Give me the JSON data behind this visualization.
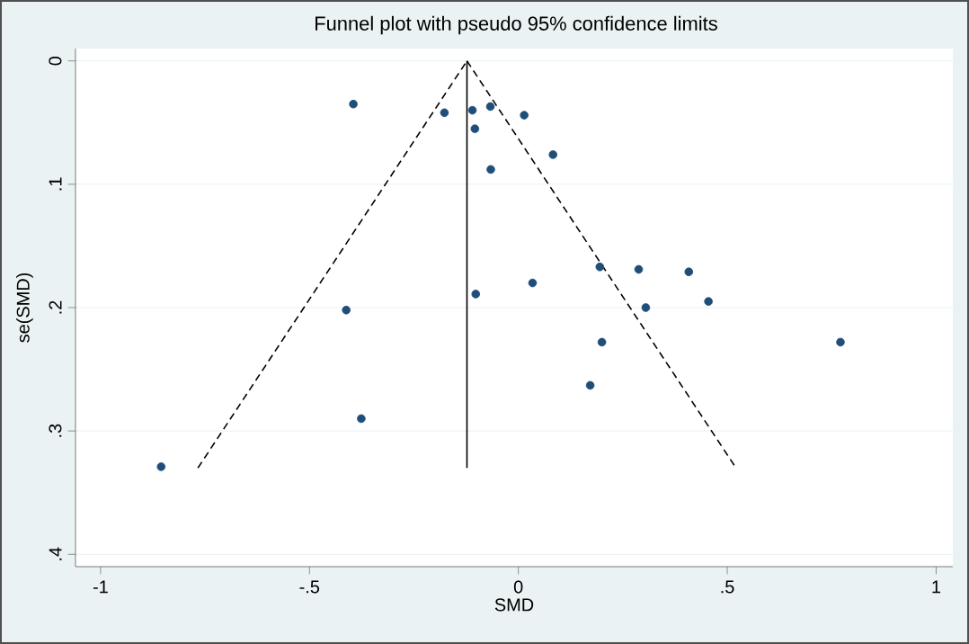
{
  "chart_data": {
    "type": "scatter",
    "title": "Funnel plot with pseudo 95% confidence limits",
    "xlabel": "SMD",
    "ylabel": "se(SMD)",
    "xlim": [
      -1.06,
      1.04
    ],
    "ylim": [
      0.41,
      -0.01
    ],
    "xticks": [
      -1,
      {
        "value": -0.5,
        "label": "-.5"
      },
      0,
      {
        "value": 0.5,
        "label": ".5"
      },
      1
    ],
    "yticks": [
      0,
      {
        "value": 0.1,
        "label": ".1"
      },
      {
        "value": 0.2,
        "label": ".2"
      },
      {
        "value": 0.3,
        "label": ".3"
      },
      {
        "value": 0.4,
        "label": ".4"
      }
    ],
    "grid": "y",
    "series": [
      {
        "color": "#1f4e79",
        "marker": "circle",
        "x": [
          -0.395,
          -0.177,
          -0.11,
          -0.067,
          -0.104,
          0.014,
          -0.066,
          0.083,
          -0.102,
          0.034,
          -0.412,
          0.195,
          0.288,
          0.408,
          0.305,
          0.455,
          0.2,
          0.771,
          0.172,
          -0.376,
          -0.855
        ],
        "values": [
          0.035,
          0.042,
          0.04,
          0.037,
          0.055,
          0.044,
          0.088,
          0.076,
          0.189,
          0.18,
          0.202,
          0.167,
          0.169,
          0.171,
          0.2,
          0.195,
          0.228,
          0.228,
          0.263,
          0.29,
          0.329
        ]
      },
      {
        "type": "line",
        "color": "#000000",
        "marker": "none",
        "line_style": "dashed",
        "x": [
          -0.767,
          -0.123
        ],
        "values": [
          0.33,
          0
        ]
      },
      {
        "type": "line",
        "color": "#000000",
        "marker": "none",
        "line_style": "dashed",
        "x": [
          -0.123,
          0.521
        ],
        "values": [
          0,
          0.33
        ]
      },
      {
        "type": "line",
        "color": "#000000",
        "marker": "none",
        "line_style": "solid",
        "x": [
          -0.123,
          -0.123
        ],
        "values": [
          0,
          0.33
        ]
      }
    ]
  }
}
